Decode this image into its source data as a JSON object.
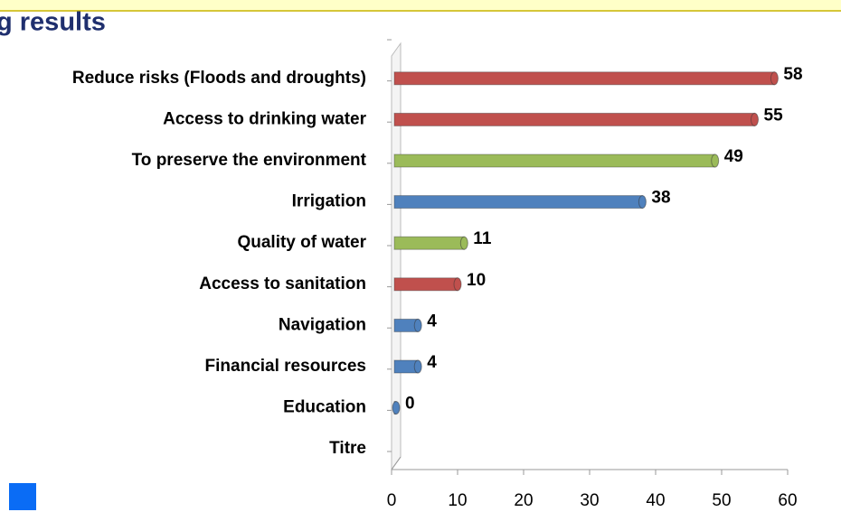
{
  "chart_data": {
    "type": "bar",
    "orientation": "horizontal",
    "title": "g results",
    "categories": [
      "Reduce risks (Floods and droughts)",
      "Access to drinking water",
      "To preserve the environment",
      "Irrigation",
      "Quality of water",
      "Access to sanitation",
      "Navigation",
      "Financial resources",
      "Education",
      "Titre"
    ],
    "values": [
      58,
      55,
      49,
      38,
      11,
      10,
      4,
      4,
      0,
      null
    ],
    "colors": [
      "#c0504d",
      "#c0504d",
      "#9bbb59",
      "#4f81bd",
      "#9bbb59",
      "#c0504d",
      "#4f81bd",
      "#4f81bd",
      "#4f81bd",
      null
    ],
    "xlim": [
      0,
      60
    ],
    "xticks": [
      0,
      10,
      20,
      30,
      40,
      50,
      60
    ]
  }
}
